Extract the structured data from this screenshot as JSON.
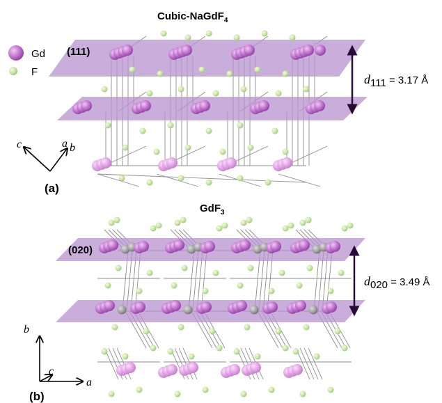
{
  "legend": {
    "gd_label": "Gd",
    "f_label": "F"
  },
  "panel_a": {
    "title_main": "Cubic-NaGdF",
    "title_sub": "4",
    "plane_label": "(111)",
    "spacing_symbol": "d",
    "spacing_sub": "111",
    "spacing_value": " = 3.17 Å",
    "axis_c": "c",
    "axis_a": "a",
    "axis_b": "b",
    "panel_label": "(a)"
  },
  "panel_b": {
    "title_main": "GdF",
    "title_sub": "3",
    "plane_label": "(020)",
    "spacing_symbol": "d",
    "spacing_sub": "020",
    "spacing_value": " = 3.49 Å",
    "axis_b": "b",
    "axis_c": "c",
    "axis_a": "a",
    "panel_label": "(b)"
  },
  "colors": {
    "plane": "#b08cc8",
    "gd_atom": "#b565c4",
    "gd_atom_light": "#e4a6e8",
    "f_atom": "#c4e4a0",
    "gray_atom": "#9a9a9a",
    "arrow": "#3a1040",
    "bond": "#8a8a8a"
  }
}
